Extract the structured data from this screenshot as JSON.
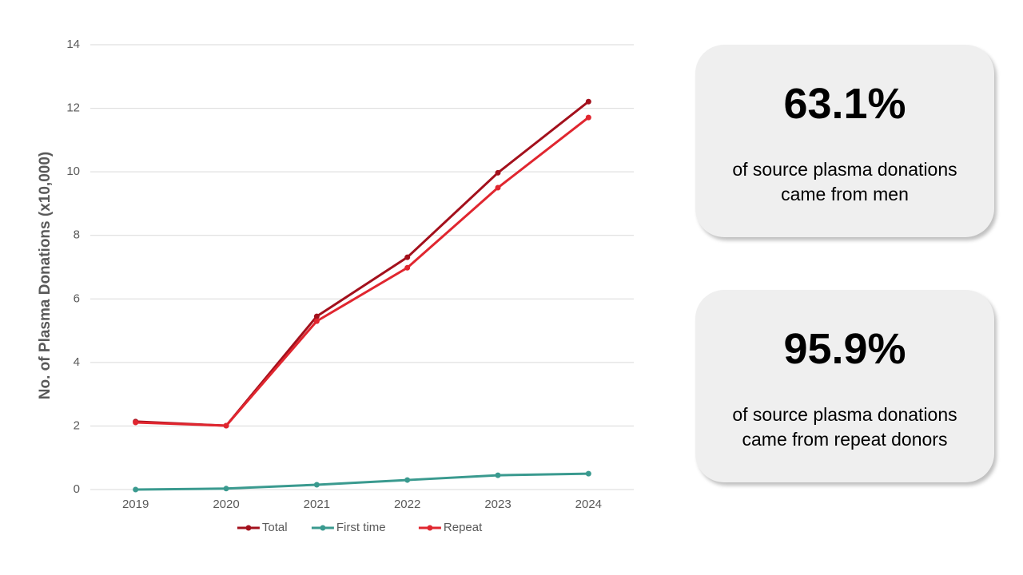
{
  "chart_data": {
    "type": "line",
    "y_label": "No. of Plasma Donations (x10,000)",
    "categories": [
      "2019",
      "2020",
      "2021",
      "2022",
      "2023",
      "2024"
    ],
    "series": [
      {
        "name": "Total",
        "color": "#a3101c",
        "values": [
          2.14,
          2.01,
          5.45,
          7.31,
          9.97,
          12.21
        ]
      },
      {
        "name": "First time",
        "color": "#3a9a8f",
        "values": [
          0,
          0.03,
          0.15,
          0.3,
          0.45,
          0.5
        ]
      },
      {
        "name": "Repeat",
        "color": "#e0262f",
        "values": [
          2.11,
          2.01,
          5.3,
          6.98,
          9.5,
          11.71
        ]
      }
    ],
    "ylim": [
      0,
      14
    ],
    "yticks": [
      0,
      2,
      4,
      6,
      8,
      10,
      12,
      14
    ],
    "grid": true,
    "legend": "bottom"
  },
  "cards": [
    {
      "stat": "63.1%",
      "lines": [
        "of source plasma donations",
        "came from men"
      ]
    },
    {
      "stat": "95.9%",
      "lines": [
        "of source plasma donations",
        "came from repeat donors"
      ]
    }
  ]
}
